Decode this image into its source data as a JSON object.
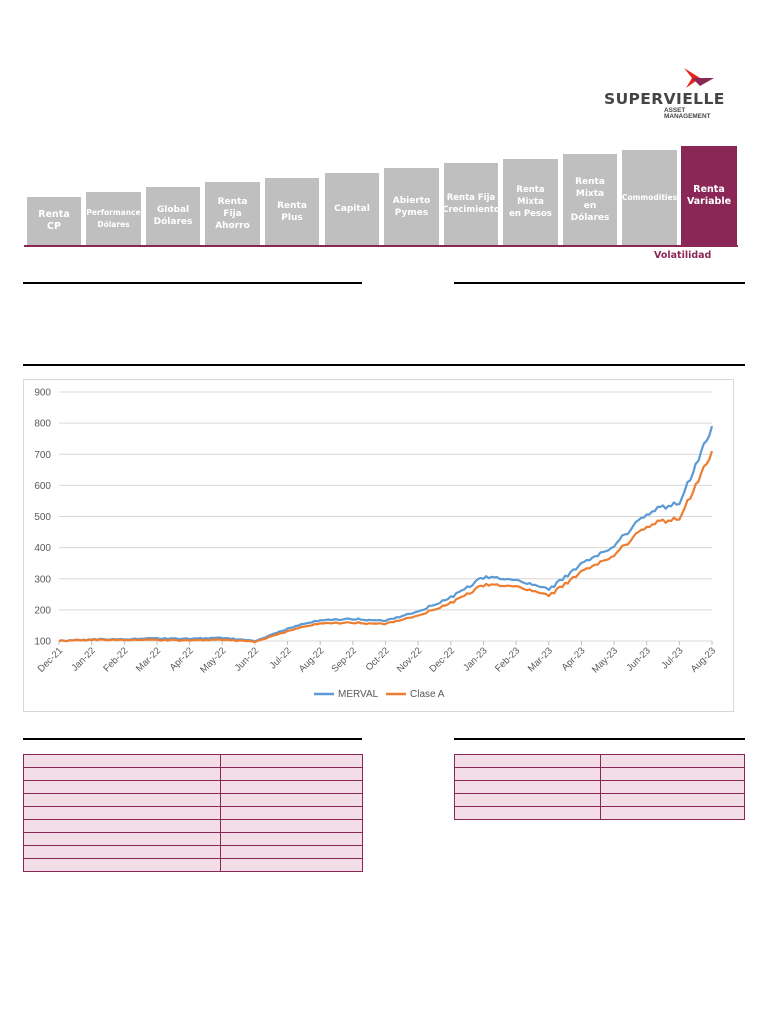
{
  "brand": {
    "name": "SUPERVIELLE",
    "sub_line1": "ASSET",
    "sub_line2": "MANAGEMENT",
    "mark_colors": [
      "#e2231a",
      "#8b2756"
    ]
  },
  "fund_scale": {
    "items": [
      {
        "label": "Renta\nCP"
      },
      {
        "label": "Performance\nDólares"
      },
      {
        "label": "Global\nDólares"
      },
      {
        "label": "Renta\nFija Ahorro"
      },
      {
        "label": "Renta Plus"
      },
      {
        "label": "Capital"
      },
      {
        "label": "Abierto\nPymes"
      },
      {
        "label": "Renta Fija\nCrecimiento"
      },
      {
        "label": "Renta Mixta\nen Pesos"
      },
      {
        "label": "Renta\nMixta\nen Dólares"
      },
      {
        "label": "Commodities"
      },
      {
        "label": "Renta\nVariable"
      }
    ],
    "active_index": 11,
    "axis_label": "Volatilidad",
    "active_color": "#8b2756",
    "inactive_color": "#bfbfbf"
  },
  "chart_data": {
    "type": "line",
    "title": "",
    "xlabel": "",
    "ylabel": "",
    "ylim": [
      100,
      900
    ],
    "yticks": [
      100,
      200,
      300,
      400,
      500,
      600,
      700,
      800,
      900
    ],
    "x_ticks": [
      "Dec-21",
      "Jan-22",
      "Feb-22",
      "Mar-22",
      "Apr-22",
      "May-22",
      "Jun-22",
      "Jul-22",
      "Aug-22",
      "Sep-22",
      "Oct-22",
      "Nov-22",
      "Dec-22",
      "Jan-23",
      "Feb-23",
      "Mar-23",
      "Apr-23",
      "May-23",
      "Jun-23",
      "Jul-23",
      "Aug-23"
    ],
    "grid": true,
    "legend": "bottom",
    "x": [
      "Dec-21",
      "Jan-22",
      "Feb-22",
      "Mar-22",
      "Apr-22",
      "May-22",
      "Jun-22",
      "Jul-22",
      "Aug-22",
      "Sep-22",
      "Oct-22",
      "Nov-22",
      "Dec-22",
      "Jan-23",
      "Feb-23",
      "Mar-23",
      "Apr-23",
      "May-23",
      "Jun-23",
      "Jul-23",
      "Aug-23"
    ],
    "series": [
      {
        "name": "MERVAL",
        "color": "#5b9bd5",
        "values": [
          100,
          105,
          106,
          108,
          107,
          110,
          100,
          140,
          168,
          170,
          165,
          195,
          240,
          305,
          295,
          265,
          345,
          405,
          510,
          545,
          790
        ]
      },
      {
        "name": "Clase A",
        "color": "#ed7d31",
        "values": [
          100,
          104,
          104,
          103,
          102,
          104,
          98,
          132,
          158,
          158,
          155,
          182,
          222,
          280,
          275,
          245,
          320,
          375,
          470,
          495,
          710
        ]
      }
    ]
  },
  "tables": {
    "left_rows": 9,
    "right_rows": 5
  }
}
